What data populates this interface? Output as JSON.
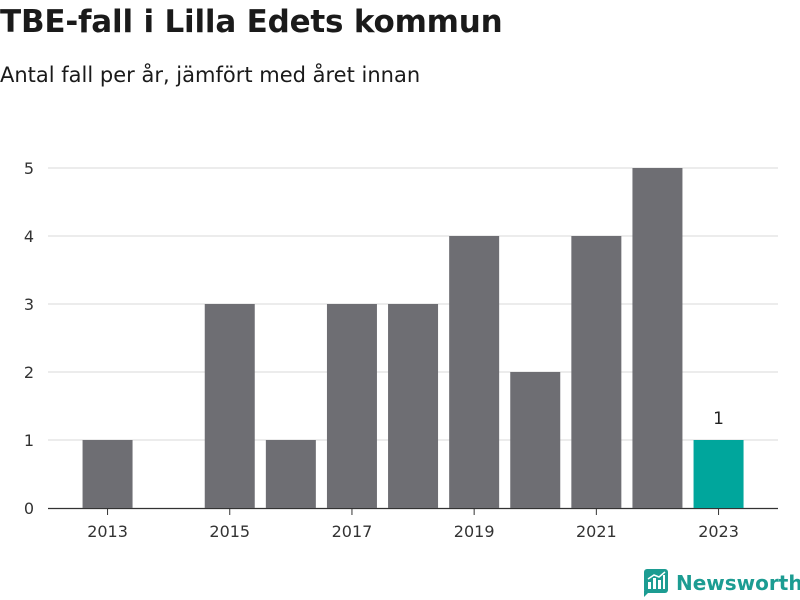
{
  "chart_data": {
    "type": "bar",
    "title": "TBE-fall i Lilla Edets kommun",
    "subtitle": "Antal fall per år, jämfört med året innan",
    "categories": [
      "2013",
      "2014",
      "2015",
      "2016",
      "2017",
      "2018",
      "2019",
      "2020",
      "2021",
      "2022",
      "2023"
    ],
    "values": [
      1,
      0,
      3,
      1,
      3,
      3,
      4,
      2,
      4,
      5,
      1
    ],
    "x_tick_labels": [
      "2013",
      "2015",
      "2017",
      "2019",
      "2021",
      "2023"
    ],
    "y_ticks": [
      0,
      1,
      2,
      3,
      4,
      5
    ],
    "ylim": [
      0,
      5
    ],
    "xlabel": "",
    "ylabel": "",
    "grid": true,
    "highlight_index": 10,
    "highlight_label": "1",
    "colors": {
      "bar": "#6e6e73",
      "highlight": "#00a69c",
      "grid": "#d9d9d9",
      "axis": "#333333"
    }
  },
  "branding": {
    "name": "Newsworthy",
    "icon": "newsworthy-logo-icon",
    "color": "#1c9c92"
  }
}
